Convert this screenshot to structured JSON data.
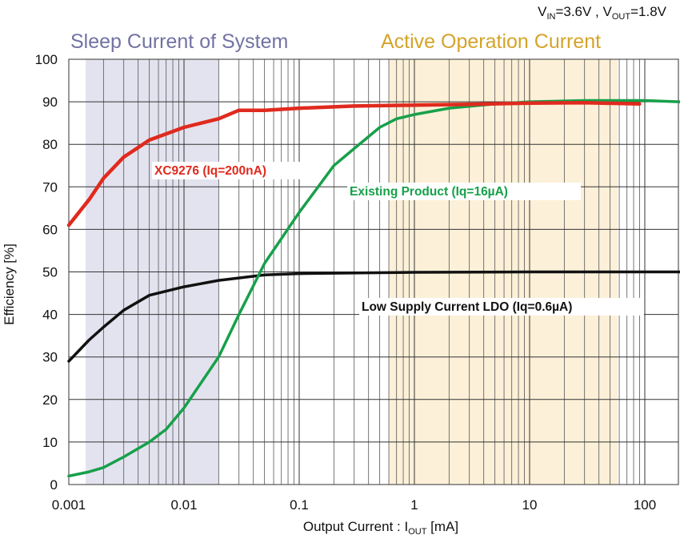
{
  "chart_data": {
    "type": "line",
    "condition": {
      "prefix_in": "V",
      "sub_in": "IN",
      "text_in": "=3.6V , ",
      "prefix_out": "V",
      "sub_out": "OUT",
      "text_out": "=1.8V"
    },
    "xlabel": {
      "main": "Output Current : I",
      "sub": "OUT",
      "unit": " [mA]"
    },
    "ylabel": "Efficiency [%]",
    "xscale": "log",
    "xlim": [
      0.001,
      200
    ],
    "ylim": [
      0,
      100
    ],
    "grid": true,
    "xticks": [
      0.001,
      0.01,
      0.1,
      1,
      10,
      100
    ],
    "xtick_labels": [
      "0.001",
      "0.01",
      "0.1",
      "1",
      "10",
      "100"
    ],
    "yticks": [
      0,
      10,
      20,
      30,
      40,
      50,
      60,
      70,
      80,
      90,
      100
    ],
    "ytick_labels": [
      "0",
      "10",
      "20",
      "30",
      "40",
      "50",
      "60",
      "70",
      "80",
      "90",
      "100"
    ],
    "regions": [
      {
        "label": "Sleep Current of System",
        "x_range": [
          0.0014,
          0.02
        ],
        "fill": "#e3e3ef",
        "label_color": "#7272a4"
      },
      {
        "label": "Active Operation Current",
        "x_range": [
          0.6,
          58
        ],
        "fill": "#fcf0d8",
        "label_color": "#d4a42a"
      }
    ],
    "series": [
      {
        "name": "XC9276 (Iq=200nA)",
        "color": "#e02a1e",
        "x": [
          0.001,
          0.0015,
          0.002,
          0.003,
          0.005,
          0.01,
          0.02,
          0.03,
          0.05,
          0.1,
          0.3,
          1,
          3,
          10,
          30,
          90
        ],
        "y": [
          61,
          67,
          72,
          77,
          81,
          84,
          86,
          88,
          88,
          88.5,
          89,
          89.2,
          89.4,
          89.7,
          89.8,
          89.5
        ]
      },
      {
        "name": "Existing Product (Iq=16µA)",
        "color": "#17a04a",
        "x": [
          0.001,
          0.0015,
          0.002,
          0.003,
          0.005,
          0.007,
          0.01,
          0.02,
          0.03,
          0.05,
          0.1,
          0.2,
          0.3,
          0.5,
          0.7,
          1,
          2,
          5,
          10,
          30,
          100,
          200
        ],
        "y": [
          2,
          3,
          4,
          6.5,
          10,
          13,
          18,
          30,
          40,
          52,
          64,
          75,
          79,
          84,
          86,
          87,
          88.5,
          89.5,
          90,
          90.3,
          90.3,
          90
        ]
      },
      {
        "name": "Low Supply Current LDO (Iq=0.6µA)",
        "color": "#111111",
        "x": [
          0.001,
          0.0015,
          0.002,
          0.003,
          0.005,
          0.01,
          0.02,
          0.05,
          0.1,
          1,
          10,
          200
        ],
        "y": [
          29,
          34,
          37,
          41,
          44.5,
          46.5,
          48,
          49.3,
          49.6,
          49.9,
          50,
          50
        ]
      }
    ]
  }
}
